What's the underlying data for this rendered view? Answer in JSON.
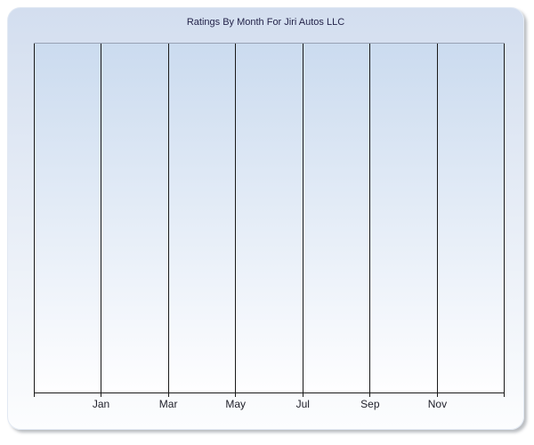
{
  "page": {
    "background": "#FFFFFF"
  },
  "panel": {
    "gradient_top": "#D3DEEF",
    "gradient_bottom": "#FCFDFE",
    "border_color": "#E2E9F3",
    "shadow_color": "#9AA0AC"
  },
  "chart_data": {
    "type": "line",
    "title": "Ratings By Month For Jiri Autos LLC",
    "x_tick_labels": [
      "Jan",
      "Mar",
      "May",
      "Jul",
      "Sep",
      "Nov"
    ],
    "x_label_line_indices": [
      1,
      2,
      3,
      4,
      5,
      6
    ],
    "x_gridline_count": 8,
    "x_tick_interval_months": 2,
    "series": [],
    "y_axis": {
      "tick_labels": [],
      "gridlines": false
    },
    "legend": "none",
    "grid": "vertical-only",
    "notes": "empty plot area - no data points rendered",
    "colors": {
      "title": "#24244A",
      "label": "#1E1E28",
      "gridline": "#1A1A1A",
      "plot_top_border": "#98A2B4",
      "plot_gradient_top": "#CBDBEF",
      "plot_gradient_bottom": "#FEFEFF"
    }
  }
}
